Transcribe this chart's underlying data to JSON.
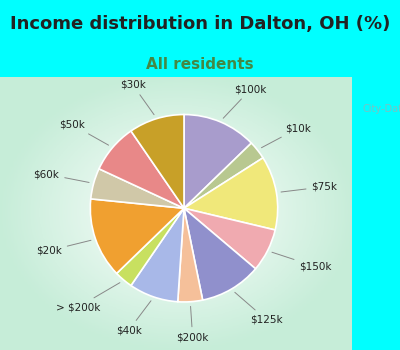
{
  "title": "Income distribution in Dalton, OH (%)",
  "subtitle": "All residents",
  "bg_cyan": "#00ffff",
  "watermark": "City-Data.com",
  "labels": [
    "$100k",
    "$10k",
    "$75k",
    "$150k",
    "$125k",
    "$200k",
    "$40k",
    "> $200k",
    "$20k",
    "$60k",
    "$50k",
    "$30k"
  ],
  "sizes": [
    12,
    3,
    12,
    7,
    10,
    4,
    8,
    3,
    13,
    5,
    8,
    9
  ],
  "colors": [
    "#a89ccc",
    "#b8c890",
    "#f0e87a",
    "#f0aab0",
    "#9090cc",
    "#f5c09a",
    "#a8b8e8",
    "#c8e060",
    "#f0a030",
    "#d0c8a8",
    "#e88888",
    "#c8a028"
  ],
  "title_fontsize": 13,
  "subtitle_fontsize": 11,
  "subtitle_color": "#448844",
  "label_fontsize": 7.5
}
